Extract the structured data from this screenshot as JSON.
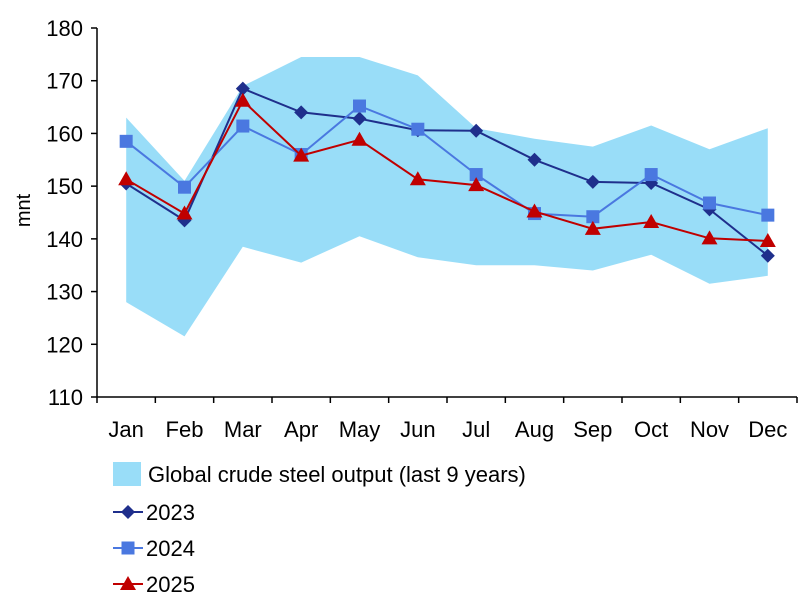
{
  "chart_data": {
    "type": "line",
    "title": "",
    "xlabel": "",
    "ylabel": "mnt",
    "ylim": [
      110,
      180
    ],
    "yticks": [
      "110",
      "120",
      "130",
      "140",
      "150",
      "160",
      "170",
      "180"
    ],
    "categories": [
      "Jan",
      "Feb",
      "Mar",
      "Apr",
      "May",
      "Jun",
      "Jul",
      "Aug",
      "Sep",
      "Oct",
      "Nov",
      "Dec"
    ],
    "band": {
      "name": "Global crude steel output (last 9 years)",
      "color": "#99DDF8",
      "upper": [
        163,
        151,
        169,
        174.5,
        174.5,
        171,
        161,
        159,
        157.5,
        161.5,
        157,
        161
      ],
      "lower": [
        128,
        121.5,
        138.5,
        135.5,
        140.5,
        136.5,
        135,
        135,
        134,
        137,
        131.5,
        133
      ]
    },
    "series": [
      {
        "name": "2023",
        "marker": "diamond",
        "color": "#1F2F8C",
        "values": [
          150.5,
          143.5,
          168.5,
          164,
          162.8,
          160.6,
          160.5,
          155,
          150.8,
          150.6,
          145.6,
          136.8
        ]
      },
      {
        "name": "2024",
        "marker": "square",
        "color": "#4A78E0",
        "values": [
          158.5,
          149.8,
          161.4,
          156,
          165.2,
          160.8,
          152.2,
          144.8,
          144.2,
          152.2,
          146.8,
          144.5
        ]
      },
      {
        "name": "2025",
        "marker": "triangle",
        "color": "#C00000",
        "values": [
          151.3,
          144.8,
          166.2,
          155.8,
          158.8,
          151.3,
          150.2,
          145.2,
          141.9,
          143.2,
          140.1,
          139.6
        ]
      }
    ],
    "grid": false,
    "legend_position": "bottom"
  }
}
